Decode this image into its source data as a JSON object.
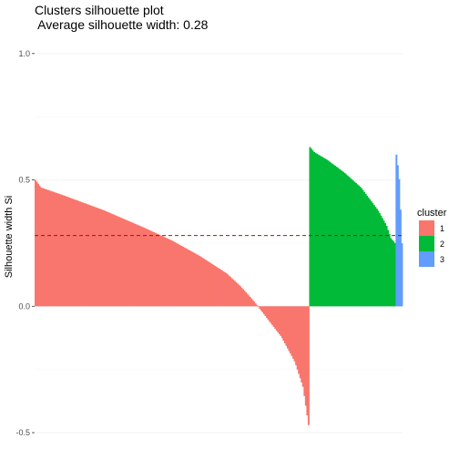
{
  "header": {
    "title_line1": "Clusters silhouette plot",
    "title_line2": " Average silhouette width: 0.28"
  },
  "chart_data": {
    "type": "bar",
    "title": "Clusters silhouette plot\n Average silhouette width: 0.28",
    "xlabel": "",
    "ylabel": "Silhouette width Si",
    "ylim": [
      -0.5,
      1.0
    ],
    "yticks": [
      -0.5,
      0.0,
      0.5,
      1.0
    ],
    "ytick_labels": [
      "-0.5",
      "0.0",
      "0.5",
      "1.0"
    ],
    "grid": true,
    "legend": {
      "title": "cluster",
      "placement": "right"
    },
    "average_line": {
      "value": 0.28,
      "color": "#cc0000",
      "style": "dashed"
    },
    "series": [
      {
        "name": "1",
        "color": "#F8766D",
        "count": 197,
        "profile": [
          [
            0,
            0.5
          ],
          [
            0.02,
            0.47
          ],
          [
            0.1,
            0.44
          ],
          [
            0.25,
            0.38
          ],
          [
            0.4,
            0.31
          ],
          [
            0.5,
            0.26
          ],
          [
            0.6,
            0.2
          ],
          [
            0.7,
            0.13
          ],
          [
            0.75,
            0.08
          ],
          [
            0.8,
            0.02
          ],
          [
            0.85,
            -0.05
          ],
          [
            0.9,
            -0.12
          ],
          [
            0.95,
            -0.22
          ],
          [
            0.98,
            -0.32
          ],
          [
            1.0,
            -0.47
          ]
        ]
      },
      {
        "name": "2",
        "color": "#00BA38",
        "count": 62,
        "profile": [
          [
            0,
            0.63
          ],
          [
            0.05,
            0.61
          ],
          [
            0.2,
            0.58
          ],
          [
            0.4,
            0.53
          ],
          [
            0.6,
            0.47
          ],
          [
            0.8,
            0.38
          ],
          [
            0.9,
            0.32
          ],
          [
            0.95,
            0.27
          ],
          [
            1.0,
            0.25
          ]
        ]
      },
      {
        "name": "3",
        "color": "#619CFF",
        "count": 5,
        "profile": [
          [
            0,
            0.6
          ],
          [
            0.3,
            0.55
          ],
          [
            0.6,
            0.48
          ],
          [
            0.8,
            0.35
          ],
          [
            1.0,
            0.25
          ]
        ]
      }
    ]
  }
}
